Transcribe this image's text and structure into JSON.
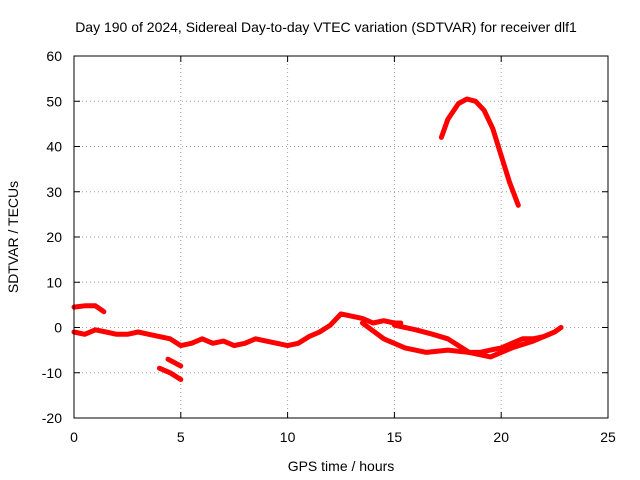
{
  "chart_data": {
    "type": "line",
    "title": "Day 190 of 2024, Sidereal Day-to-day VTEC variation (SDTVAR) for receiver dlf1",
    "xlabel": "GPS time / hours",
    "ylabel": "SDTVAR / TECUs",
    "xlim": [
      0,
      25
    ],
    "ylim": [
      -20,
      60
    ],
    "x_ticks": [
      0,
      5,
      10,
      15,
      20,
      25
    ],
    "y_ticks": [
      -20,
      -10,
      0,
      10,
      20,
      30,
      40,
      50,
      60
    ],
    "grid": true,
    "legend": "none",
    "color": "#ff0000",
    "series": [
      {
        "name": "s1",
        "x": [
          0.0,
          0.5,
          1.0,
          1.4
        ],
        "y": [
          4.5,
          4.8,
          4.8,
          3.5
        ]
      },
      {
        "name": "s2",
        "x": [
          0.0,
          0.5,
          1.0,
          1.5,
          2.0,
          2.5,
          3.0,
          3.5,
          4.0,
          4.5,
          5.0,
          5.5,
          6.0,
          6.5,
          7.0,
          7.5,
          8.0,
          8.5,
          9.0,
          9.5,
          10.0,
          10.5,
          11.0,
          11.5,
          12.0,
          12.5,
          13.0,
          13.5,
          14.0,
          14.5,
          15.0,
          15.3
        ],
        "y": [
          -1.0,
          -1.5,
          -0.5,
          -1.0,
          -1.5,
          -1.5,
          -1.0,
          -1.5,
          -2.0,
          -2.5,
          -4.0,
          -3.5,
          -2.5,
          -3.5,
          -3.0,
          -4.0,
          -3.5,
          -2.5,
          -3.0,
          -3.5,
          -4.0,
          -3.5,
          -2.0,
          -1.0,
          0.5,
          3.0,
          2.5,
          2.0,
          1.0,
          1.5,
          1.0,
          1.0
        ]
      },
      {
        "name": "s3",
        "x": [
          4.0,
          4.5,
          5.0
        ],
        "y": [
          -9.0,
          -10.0,
          -11.5
        ]
      },
      {
        "name": "s4",
        "x": [
          4.4,
          5.0
        ],
        "y": [
          -7.0,
          -8.5
        ]
      },
      {
        "name": "s5",
        "x": [
          13.5,
          14.5,
          15.5,
          16.5,
          17.5,
          18.5,
          19.5,
          20.5,
          21.5,
          22.5,
          22.8
        ],
        "y": [
          1.0,
          -2.5,
          -4.5,
          -5.5,
          -5.0,
          -5.5,
          -6.5,
          -4.5,
          -3.0,
          -1.0,
          0.0
        ]
      },
      {
        "name": "s6",
        "x": [
          15.0,
          16.0,
          16.8,
          17.5,
          18.0,
          18.5,
          19.0,
          19.5,
          20.0,
          20.5,
          21.0,
          21.5,
          22.0,
          22.5,
          22.8
        ],
        "y": [
          0.5,
          -0.5,
          -1.5,
          -2.5,
          -4.0,
          -5.5,
          -5.5,
          -5.0,
          -4.5,
          -3.5,
          -2.5,
          -2.5,
          -2.0,
          -1.0,
          0.0
        ]
      },
      {
        "name": "s7",
        "x": [
          17.2,
          17.5,
          18.0,
          18.4,
          18.8,
          19.2,
          19.6,
          20.0,
          20.4,
          20.8
        ],
        "y": [
          42.0,
          46.0,
          49.5,
          50.5,
          50.0,
          48.0,
          44.0,
          38.0,
          32.0,
          27.0
        ]
      }
    ]
  }
}
